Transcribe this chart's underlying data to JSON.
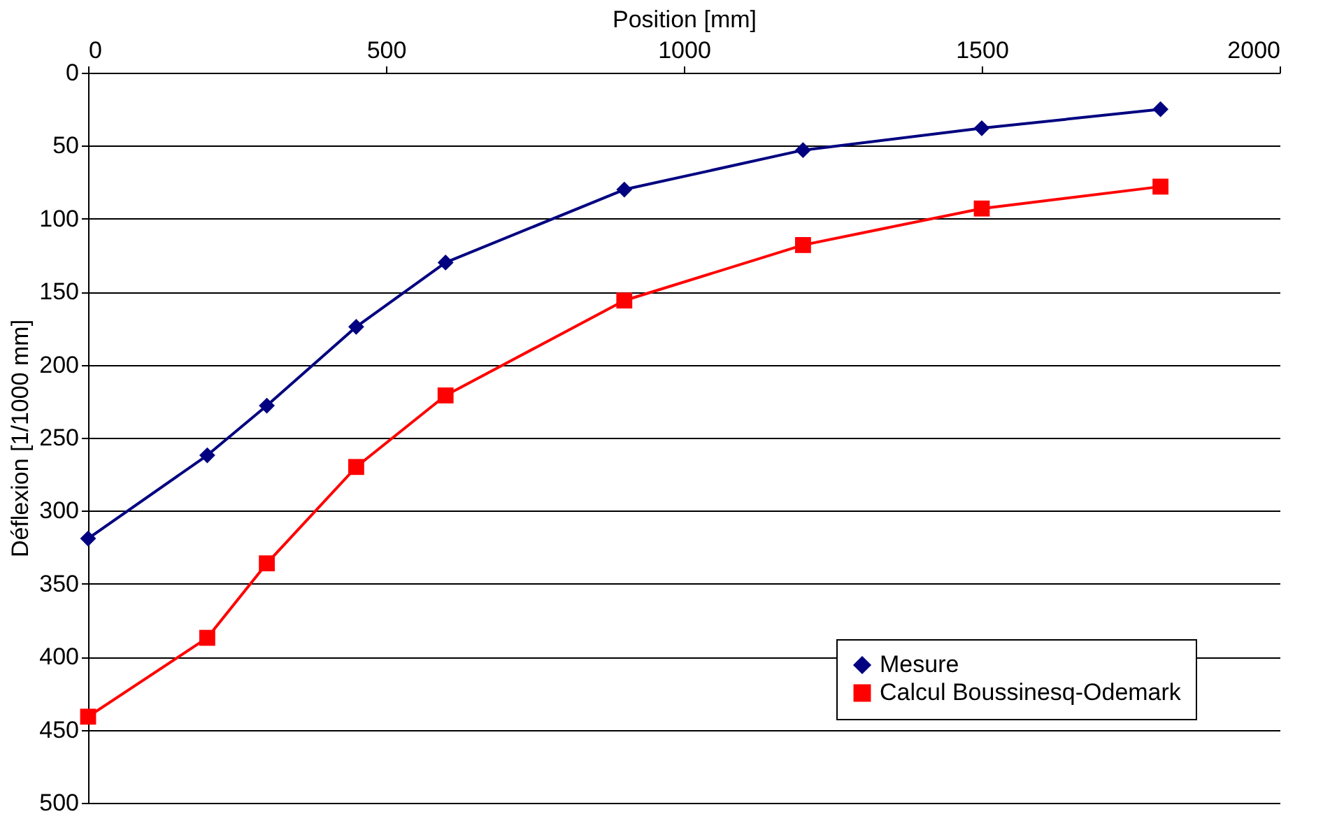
{
  "chart_data": {
    "type": "line",
    "xlabel": "Position [mm]",
    "ylabel": "Déflexion [1/1000 mm]",
    "x": [
      0,
      200,
      300,
      450,
      600,
      900,
      1200,
      1500,
      1800
    ],
    "series": [
      {
        "name": "Mesure",
        "color": "#000080",
        "marker": "diamond",
        "values": [
          319,
          262,
          228,
          174,
          130,
          80,
          53,
          38,
          25
        ]
      },
      {
        "name": "Calcul Boussinesq-Odemark",
        "color": "#ff0000",
        "marker": "square",
        "values": [
          441,
          387,
          336,
          270,
          221,
          156,
          118,
          93,
          78
        ]
      }
    ],
    "xlim": [
      0,
      2000
    ],
    "xticks": [
      0,
      500,
      1000,
      1500,
      2000
    ],
    "ylim": [
      500,
      0
    ],
    "yticks": [
      0,
      50,
      100,
      150,
      200,
      250,
      300,
      350,
      400,
      450,
      500
    ],
    "grid": "y",
    "legend": "bottom right",
    "line_style": "solid"
  }
}
